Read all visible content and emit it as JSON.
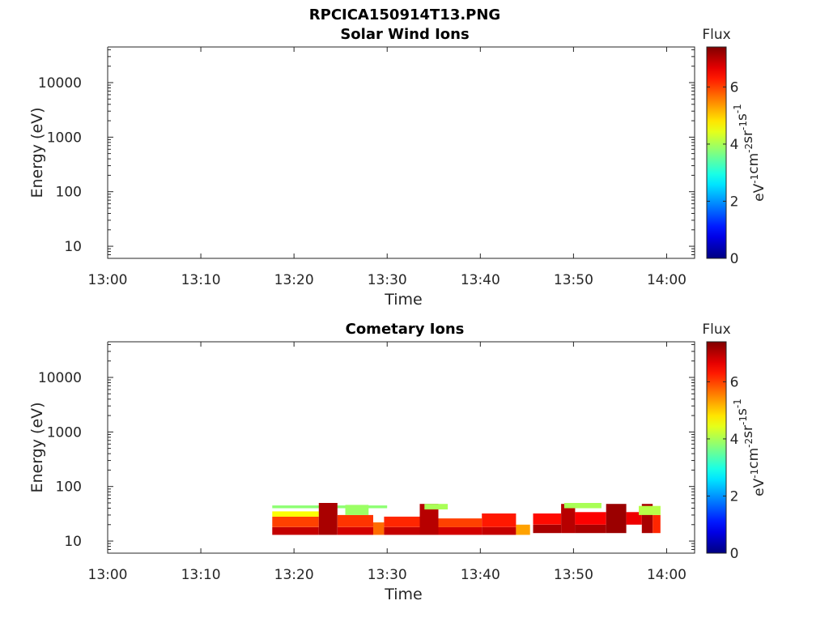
{
  "figure_title": "RPCICA150914T13.PNG",
  "chart_data": [
    {
      "type": "heatmap",
      "title": "Solar Wind Ions",
      "xlabel": "Time",
      "ylabel": "Energy (eV)",
      "x_ticks": [
        "13:00",
        "13:10",
        "13:20",
        "13:30",
        "13:40",
        "13:50",
        "14:00"
      ],
      "x_range": [
        "13:00",
        "14:03"
      ],
      "y_scale": "log",
      "y_ticks": [
        10,
        100,
        1000,
        10000
      ],
      "y_tick_labels": [
        "10",
        "100",
        "1000",
        "10000"
      ],
      "y_range": [
        6,
        45000
      ],
      "colorbar": {
        "label": "Flux",
        "unit": "eV-1cm-2sr-1s-1",
        "ticks": [
          0,
          2,
          4,
          6
        ],
        "range": [
          0,
          7.4
        ],
        "colormap": "jet"
      },
      "cells": []
    },
    {
      "type": "heatmap",
      "title": "Cometary Ions",
      "xlabel": "Time",
      "ylabel": "Energy (eV)",
      "x_ticks": [
        "13:00",
        "13:10",
        "13:20",
        "13:30",
        "13:40",
        "13:50",
        "14:00"
      ],
      "x_range": [
        "13:00",
        "14:03"
      ],
      "y_scale": "log",
      "y_ticks": [
        10,
        100,
        1000,
        10000
      ],
      "y_tick_labels": [
        "10",
        "100",
        "1000",
        "10000"
      ],
      "y_range": [
        6,
        45000
      ],
      "colorbar": {
        "label": "Flux",
        "unit": "eV-1cm-2sr-1s-1",
        "ticks": [
          0,
          2,
          4,
          6
        ],
        "range": [
          0,
          7.4
        ],
        "colormap": "jet"
      },
      "cells": [
        {
          "t": [
            "13:17:40",
            "13:22:40"
          ],
          "e": [
            13,
            18
          ],
          "flux": 6.9
        },
        {
          "t": [
            "13:17:40",
            "13:22:40"
          ],
          "e": [
            18,
            28
          ],
          "flux": 6.0
        },
        {
          "t": [
            "13:17:40",
            "13:22:40"
          ],
          "e": [
            28,
            35
          ],
          "flux": 4.6
        },
        {
          "t": [
            "13:17:40",
            "13:30:00"
          ],
          "e": [
            40,
            45
          ],
          "flux": 3.8
        },
        {
          "t": [
            "13:22:40",
            "13:24:40"
          ],
          "e": [
            13,
            50
          ],
          "flux": 7.1
        },
        {
          "t": [
            "13:24:40",
            "13:28:30"
          ],
          "e": [
            13,
            18
          ],
          "flux": 6.8
        },
        {
          "t": [
            "13:24:40",
            "13:28:30"
          ],
          "e": [
            18,
            30
          ],
          "flux": 6.1
        },
        {
          "t": [
            "13:25:30",
            "13:28:00"
          ],
          "e": [
            30,
            46
          ],
          "flux": 3.9
        },
        {
          "t": [
            "13:28:30",
            "13:29:40"
          ],
          "e": [
            13,
            22
          ],
          "flux": 5.7
        },
        {
          "t": [
            "13:29:40",
            "13:33:30"
          ],
          "e": [
            13,
            18
          ],
          "flux": 6.9
        },
        {
          "t": [
            "13:29:40",
            "13:33:30"
          ],
          "e": [
            18,
            28
          ],
          "flux": 6.2
        },
        {
          "t": [
            "13:33:30",
            "13:35:30"
          ],
          "e": [
            13,
            48
          ],
          "flux": 7.0
        },
        {
          "t": [
            "13:34:00",
            "13:36:30"
          ],
          "e": [
            38,
            48
          ],
          "flux": 4.0
        },
        {
          "t": [
            "13:35:30",
            "13:40:10"
          ],
          "e": [
            13,
            18
          ],
          "flux": 6.8
        },
        {
          "t": [
            "13:35:30",
            "13:40:10"
          ],
          "e": [
            18,
            26
          ],
          "flux": 6.0
        },
        {
          "t": [
            "13:40:10",
            "13:43:50"
          ],
          "e": [
            13,
            18
          ],
          "flux": 6.9
        },
        {
          "t": [
            "13:40:10",
            "13:43:50"
          ],
          "e": [
            18,
            32
          ],
          "flux": 6.3
        },
        {
          "t": [
            "13:43:50",
            "13:45:20"
          ],
          "e": [
            13,
            20
          ],
          "flux": 5.3
        },
        {
          "t": [
            "13:45:40",
            "13:48:40"
          ],
          "e": [
            14,
            20
          ],
          "flux": 7.1
        },
        {
          "t": [
            "13:45:40",
            "13:48:40"
          ],
          "e": [
            20,
            32
          ],
          "flux": 6.4
        },
        {
          "t": [
            "13:48:40",
            "13:50:10"
          ],
          "e": [
            14,
            48
          ],
          "flux": 7.0
        },
        {
          "t": [
            "13:49:00",
            "13:53:00"
          ],
          "e": [
            40,
            50
          ],
          "flux": 4.0
        },
        {
          "t": [
            "13:50:10",
            "13:53:30"
          ],
          "e": [
            14,
            20
          ],
          "flux": 7.1
        },
        {
          "t": [
            "13:50:10",
            "13:53:30"
          ],
          "e": [
            20,
            34
          ],
          "flux": 6.5
        },
        {
          "t": [
            "13:53:30",
            "13:55:40"
          ],
          "e": [
            14,
            48
          ],
          "flux": 7.2
        },
        {
          "t": [
            "13:55:40",
            "13:57:20"
          ],
          "e": [
            20,
            34
          ],
          "flux": 6.6
        },
        {
          "t": [
            "13:57:20",
            "13:58:30"
          ],
          "e": [
            14,
            48
          ],
          "flux": 7.1
        },
        {
          "t": [
            "13:58:30",
            "13:59:20"
          ],
          "e": [
            14,
            30
          ],
          "flux": 6.2
        },
        {
          "t": [
            "13:57:00",
            "13:59:20"
          ],
          "e": [
            30,
            44
          ],
          "flux": 4.1
        }
      ]
    }
  ]
}
